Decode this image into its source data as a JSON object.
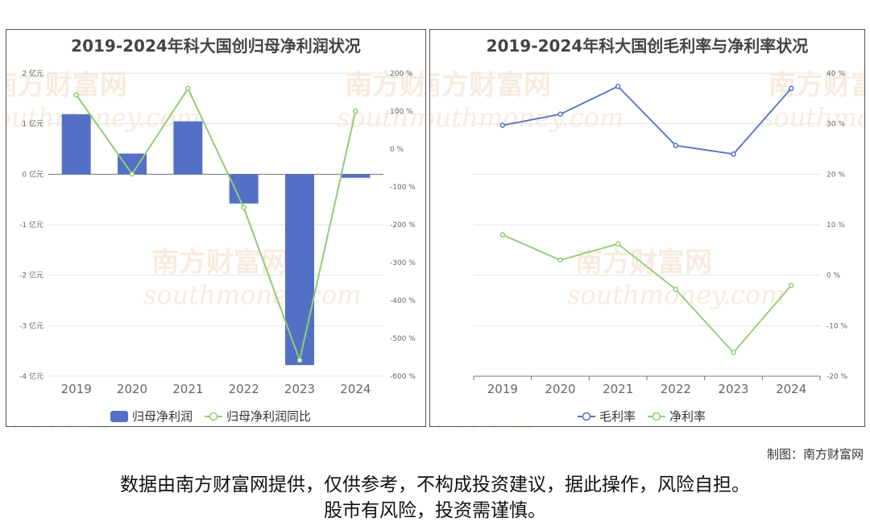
{
  "watermark": {
    "brand": "南方财富网",
    "domain": "southmoney.com"
  },
  "charts": [
    {
      "title": "2019-2024年科大国创归母净利润状况",
      "legend": [
        "归母净利润",
        "归母净利润同比"
      ],
      "left_ticks": [
        "2 亿元",
        "1 亿元",
        "0 亿元",
        "-1 亿元",
        "-2 亿元",
        "-3 亿元",
        "-4 亿元"
      ],
      "right_ticks": [
        "200 %",
        "100 %",
        "0 %",
        "-100 %",
        "-200 %",
        "-300 %",
        "-400 %",
        "-500 %",
        "-600 %"
      ],
      "categories": [
        "2019",
        "2020",
        "2021",
        "2022",
        "2023",
        "2024"
      ]
    },
    {
      "title": "2019-2024年科大国创毛利率与净利率状况",
      "legend": [
        "毛利率",
        "净利率"
      ],
      "right_ticks": [
        "40 %",
        "30 %",
        "20 %",
        "10 %",
        "0 %",
        "-10 %",
        "-20 %"
      ],
      "categories": [
        "2019",
        "2020",
        "2021",
        "2022",
        "2023",
        "2024"
      ]
    }
  ],
  "chart_data": [
    {
      "type": "bar",
      "title": "2019-2024年科大国创归母净利润状况",
      "categories": [
        "2019",
        "2020",
        "2021",
        "2022",
        "2023",
        "2024"
      ],
      "series": [
        {
          "name": "归母净利润",
          "type": "bar",
          "axis": "left",
          "unit": "亿元",
          "values": [
            1.19,
            0.41,
            1.05,
            -0.58,
            -3.78,
            -0.07
          ]
        },
        {
          "name": "归母净利润同比",
          "type": "line",
          "axis": "right",
          "unit": "%",
          "values": [
            143,
            -66,
            160,
            -155,
            -558,
            100
          ]
        }
      ],
      "ylim_left": [
        -4,
        2
      ],
      "ylim_right": [
        -600,
        200
      ],
      "grid": true,
      "legend_position": "bottom"
    },
    {
      "type": "line",
      "title": "2019-2024年科大国创毛利率与净利率状况",
      "categories": [
        "2019",
        "2020",
        "2021",
        "2022",
        "2023",
        "2024"
      ],
      "series": [
        {
          "name": "毛利率",
          "unit": "%",
          "values": [
            29.7,
            31.9,
            37.4,
            25.7,
            24.0,
            37.0
          ],
          "color": "#5470c6"
        },
        {
          "name": "净利率",
          "unit": "%",
          "values": [
            8.0,
            3.0,
            6.2,
            -2.8,
            -15.3,
            -2.0
          ],
          "color": "#91cc75"
        }
      ],
      "ylim": [
        -20,
        40
      ],
      "grid": true,
      "legend_position": "bottom"
    }
  ],
  "colors": {
    "bar": "#5470c6",
    "line_green": "#91cc75",
    "line_blue": "#5470c6"
  },
  "footer": {
    "credit": "制图：南方财富网",
    "disclaimer_line1": "数据由南方财富网提供，仅供参考，不构成投资建议，据此操作，风险自担。",
    "disclaimer_line2": "股市有风险，投资需谨慎。"
  }
}
